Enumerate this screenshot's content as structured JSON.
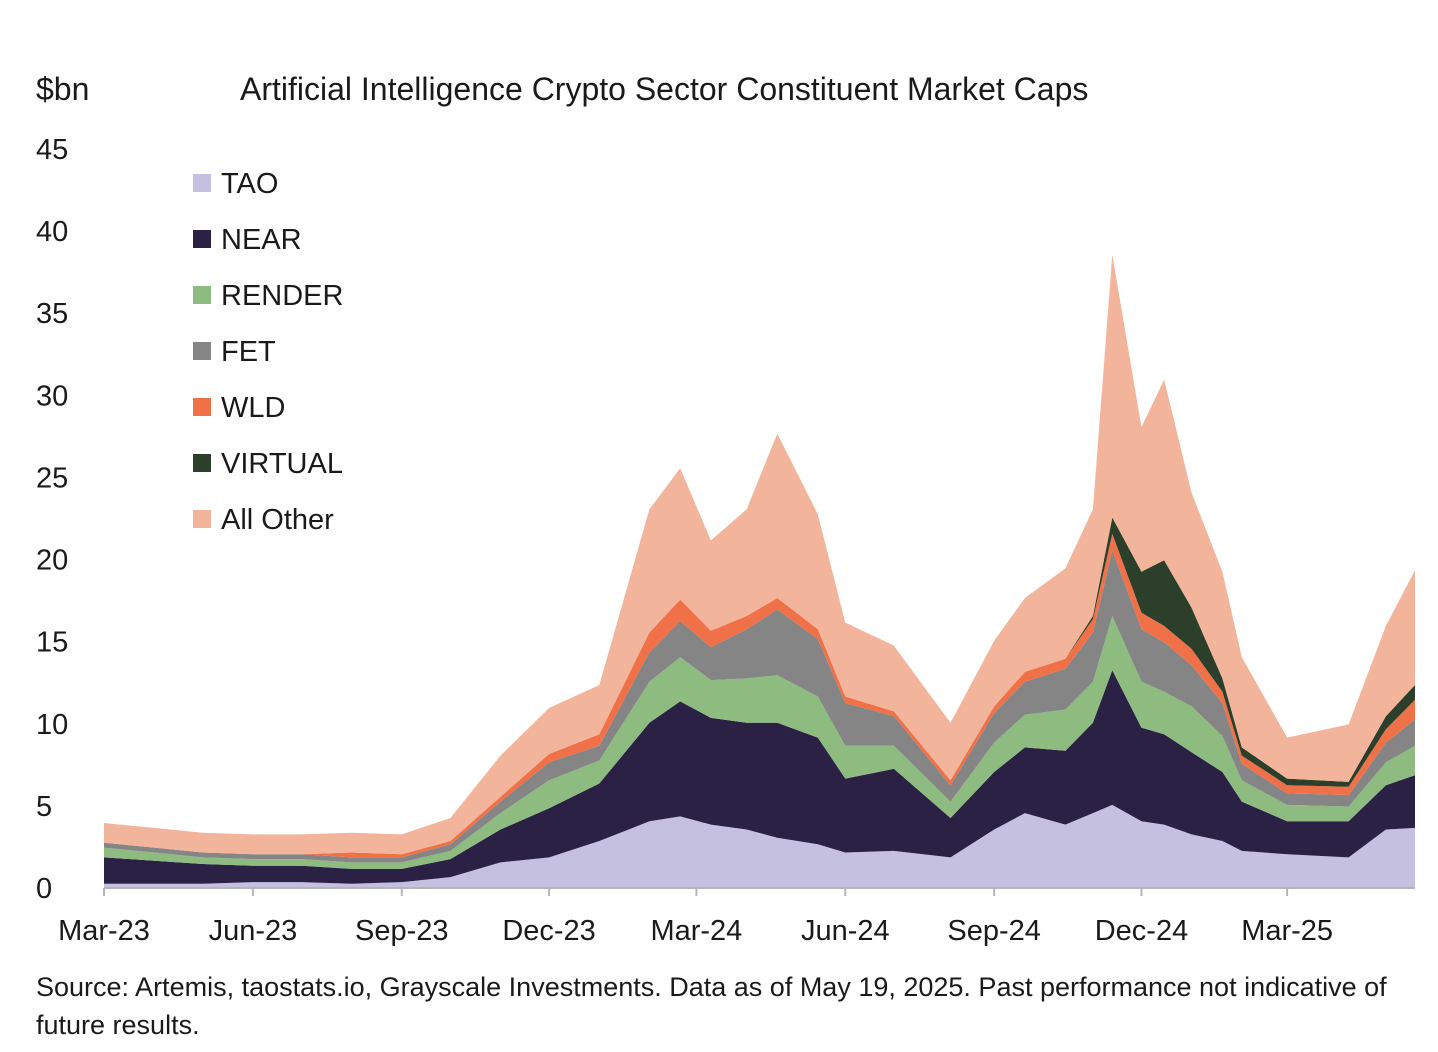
{
  "chart_data": {
    "type": "area",
    "stacked": true,
    "title": "Artificial Intelligence Crypto Sector Constituent Market Caps",
    "ylabel": "$bn",
    "xlabel": "",
    "ylim": [
      0,
      45
    ],
    "yticks": [
      0,
      5,
      10,
      15,
      20,
      25,
      30,
      35,
      40,
      45
    ],
    "xlim": [
      "2023-03-01",
      "2025-05-19"
    ],
    "xticks": [
      {
        "date": "2023-03-01",
        "label": "Mar-23"
      },
      {
        "date": "2023-06-01",
        "label": "Jun-23"
      },
      {
        "date": "2023-09-01",
        "label": "Sep-23"
      },
      {
        "date": "2023-12-01",
        "label": "Dec-23"
      },
      {
        "date": "2024-03-01",
        "label": "Mar-24"
      },
      {
        "date": "2024-06-01",
        "label": "Jun-24"
      },
      {
        "date": "2024-09-01",
        "label": "Sep-24"
      },
      {
        "date": "2024-12-01",
        "label": "Dec-24"
      },
      {
        "date": "2025-03-01",
        "label": "Mar-25"
      }
    ],
    "grid": false,
    "legend_position": "top-left",
    "x": [
      "2023-03-01",
      "2023-04-01",
      "2023-05-01",
      "2023-06-01",
      "2023-07-01",
      "2023-08-01",
      "2023-09-01",
      "2023-10-01",
      "2023-11-01",
      "2023-12-01",
      "2024-01-01",
      "2024-02-01",
      "2024-02-20",
      "2024-03-10",
      "2024-04-01",
      "2024-04-20",
      "2024-05-15",
      "2024-06-01",
      "2024-07-01",
      "2024-08-05",
      "2024-09-01",
      "2024-09-20",
      "2024-10-15",
      "2024-11-01",
      "2024-11-13",
      "2024-12-01",
      "2024-12-15",
      "2025-01-01",
      "2025-01-20",
      "2025-02-01",
      "2025-03-01",
      "2025-04-08",
      "2025-05-01",
      "2025-05-19"
    ],
    "series": [
      {
        "name": "TAO",
        "color": "#c5bfe0",
        "values": [
          0.2,
          0.2,
          0.2,
          0.3,
          0.3,
          0.2,
          0.3,
          0.6,
          1.5,
          1.8,
          2.8,
          4.0,
          4.3,
          3.8,
          3.5,
          3.0,
          2.6,
          2.1,
          2.2,
          1.8,
          3.5,
          4.5,
          3.8,
          4.5,
          5.0,
          4.0,
          3.8,
          3.2,
          2.8,
          2.2,
          2.0,
          1.8,
          3.5,
          3.6
        ]
      },
      {
        "name": "NEAR",
        "color": "#2a2145",
        "values": [
          1.6,
          1.4,
          1.2,
          1.0,
          1.0,
          0.9,
          0.8,
          1.1,
          2.0,
          3.0,
          3.5,
          6.0,
          7.0,
          6.5,
          6.5,
          7.0,
          6.5,
          4.5,
          5.0,
          2.4,
          3.5,
          4.0,
          4.5,
          5.5,
          8.2,
          5.7,
          5.5,
          5.0,
          4.2,
          3.0,
          2.0,
          2.2,
          2.7,
          3.2
        ]
      },
      {
        "name": "RENDER",
        "color": "#8dbb80",
        "values": [
          0.6,
          0.5,
          0.4,
          0.4,
          0.4,
          0.4,
          0.4,
          0.5,
          1.0,
          1.7,
          1.4,
          2.5,
          2.7,
          2.3,
          2.7,
          2.9,
          2.5,
          2.0,
          1.4,
          1.0,
          1.8,
          2.0,
          2.5,
          2.5,
          3.3,
          2.8,
          2.6,
          2.8,
          2.2,
          1.3,
          1.0,
          0.9,
          1.4,
          1.8
        ]
      },
      {
        "name": "FET",
        "color": "#858585",
        "values": [
          0.3,
          0.3,
          0.3,
          0.3,
          0.3,
          0.3,
          0.3,
          0.4,
          0.7,
          1.1,
          0.9,
          1.8,
          2.2,
          2.0,
          3.0,
          4.0,
          3.5,
          2.6,
          1.8,
          1.0,
          1.8,
          2.0,
          2.5,
          3.0,
          4.0,
          3.2,
          3.0,
          2.5,
          2.0,
          1.0,
          0.7,
          0.7,
          1.2,
          1.6
        ]
      },
      {
        "name": "WLD",
        "color": "#f07048",
        "values": [
          0.0,
          0.0,
          0.0,
          0.0,
          0.0,
          0.3,
          0.2,
          0.2,
          0.3,
          0.5,
          0.7,
          1.2,
          1.3,
          1.0,
          0.8,
          0.7,
          0.6,
          0.4,
          0.3,
          0.3,
          0.4,
          0.6,
          0.6,
          0.8,
          1.0,
          1.0,
          1.0,
          1.0,
          0.7,
          0.5,
          0.5,
          0.5,
          0.8,
          1.2
        ]
      },
      {
        "name": "VIRTUAL",
        "color": "#2c3f2a",
        "values": [
          0.0,
          0.0,
          0.0,
          0.0,
          0.0,
          0.0,
          0.0,
          0.0,
          0.0,
          0.0,
          0.0,
          0.0,
          0.0,
          0.0,
          0.0,
          0.0,
          0.0,
          0.0,
          0.0,
          0.0,
          0.0,
          0.0,
          0.0,
          0.2,
          1.0,
          2.5,
          4.0,
          2.5,
          0.8,
          0.5,
          0.4,
          0.3,
          0.8,
          0.9
        ]
      },
      {
        "name": "All Other",
        "color": "#f3b49c",
        "values": [
          1.2,
          1.2,
          1.2,
          1.2,
          1.2,
          1.2,
          1.2,
          1.4,
          2.5,
          2.8,
          3.0,
          7.5,
          8.0,
          5.5,
          6.5,
          10.0,
          7.0,
          4.5,
          4.0,
          3.5,
          4.0,
          4.5,
          5.5,
          6.5,
          16.0,
          8.8,
          11.0,
          7.0,
          6.5,
          5.5,
          2.5,
          3.5,
          5.5,
          7.0
        ]
      }
    ]
  },
  "source": "Source: Artemis, taostats.io, Grayscale Investments. Data as of May 19, 2025. Past performance not indicative of future results."
}
